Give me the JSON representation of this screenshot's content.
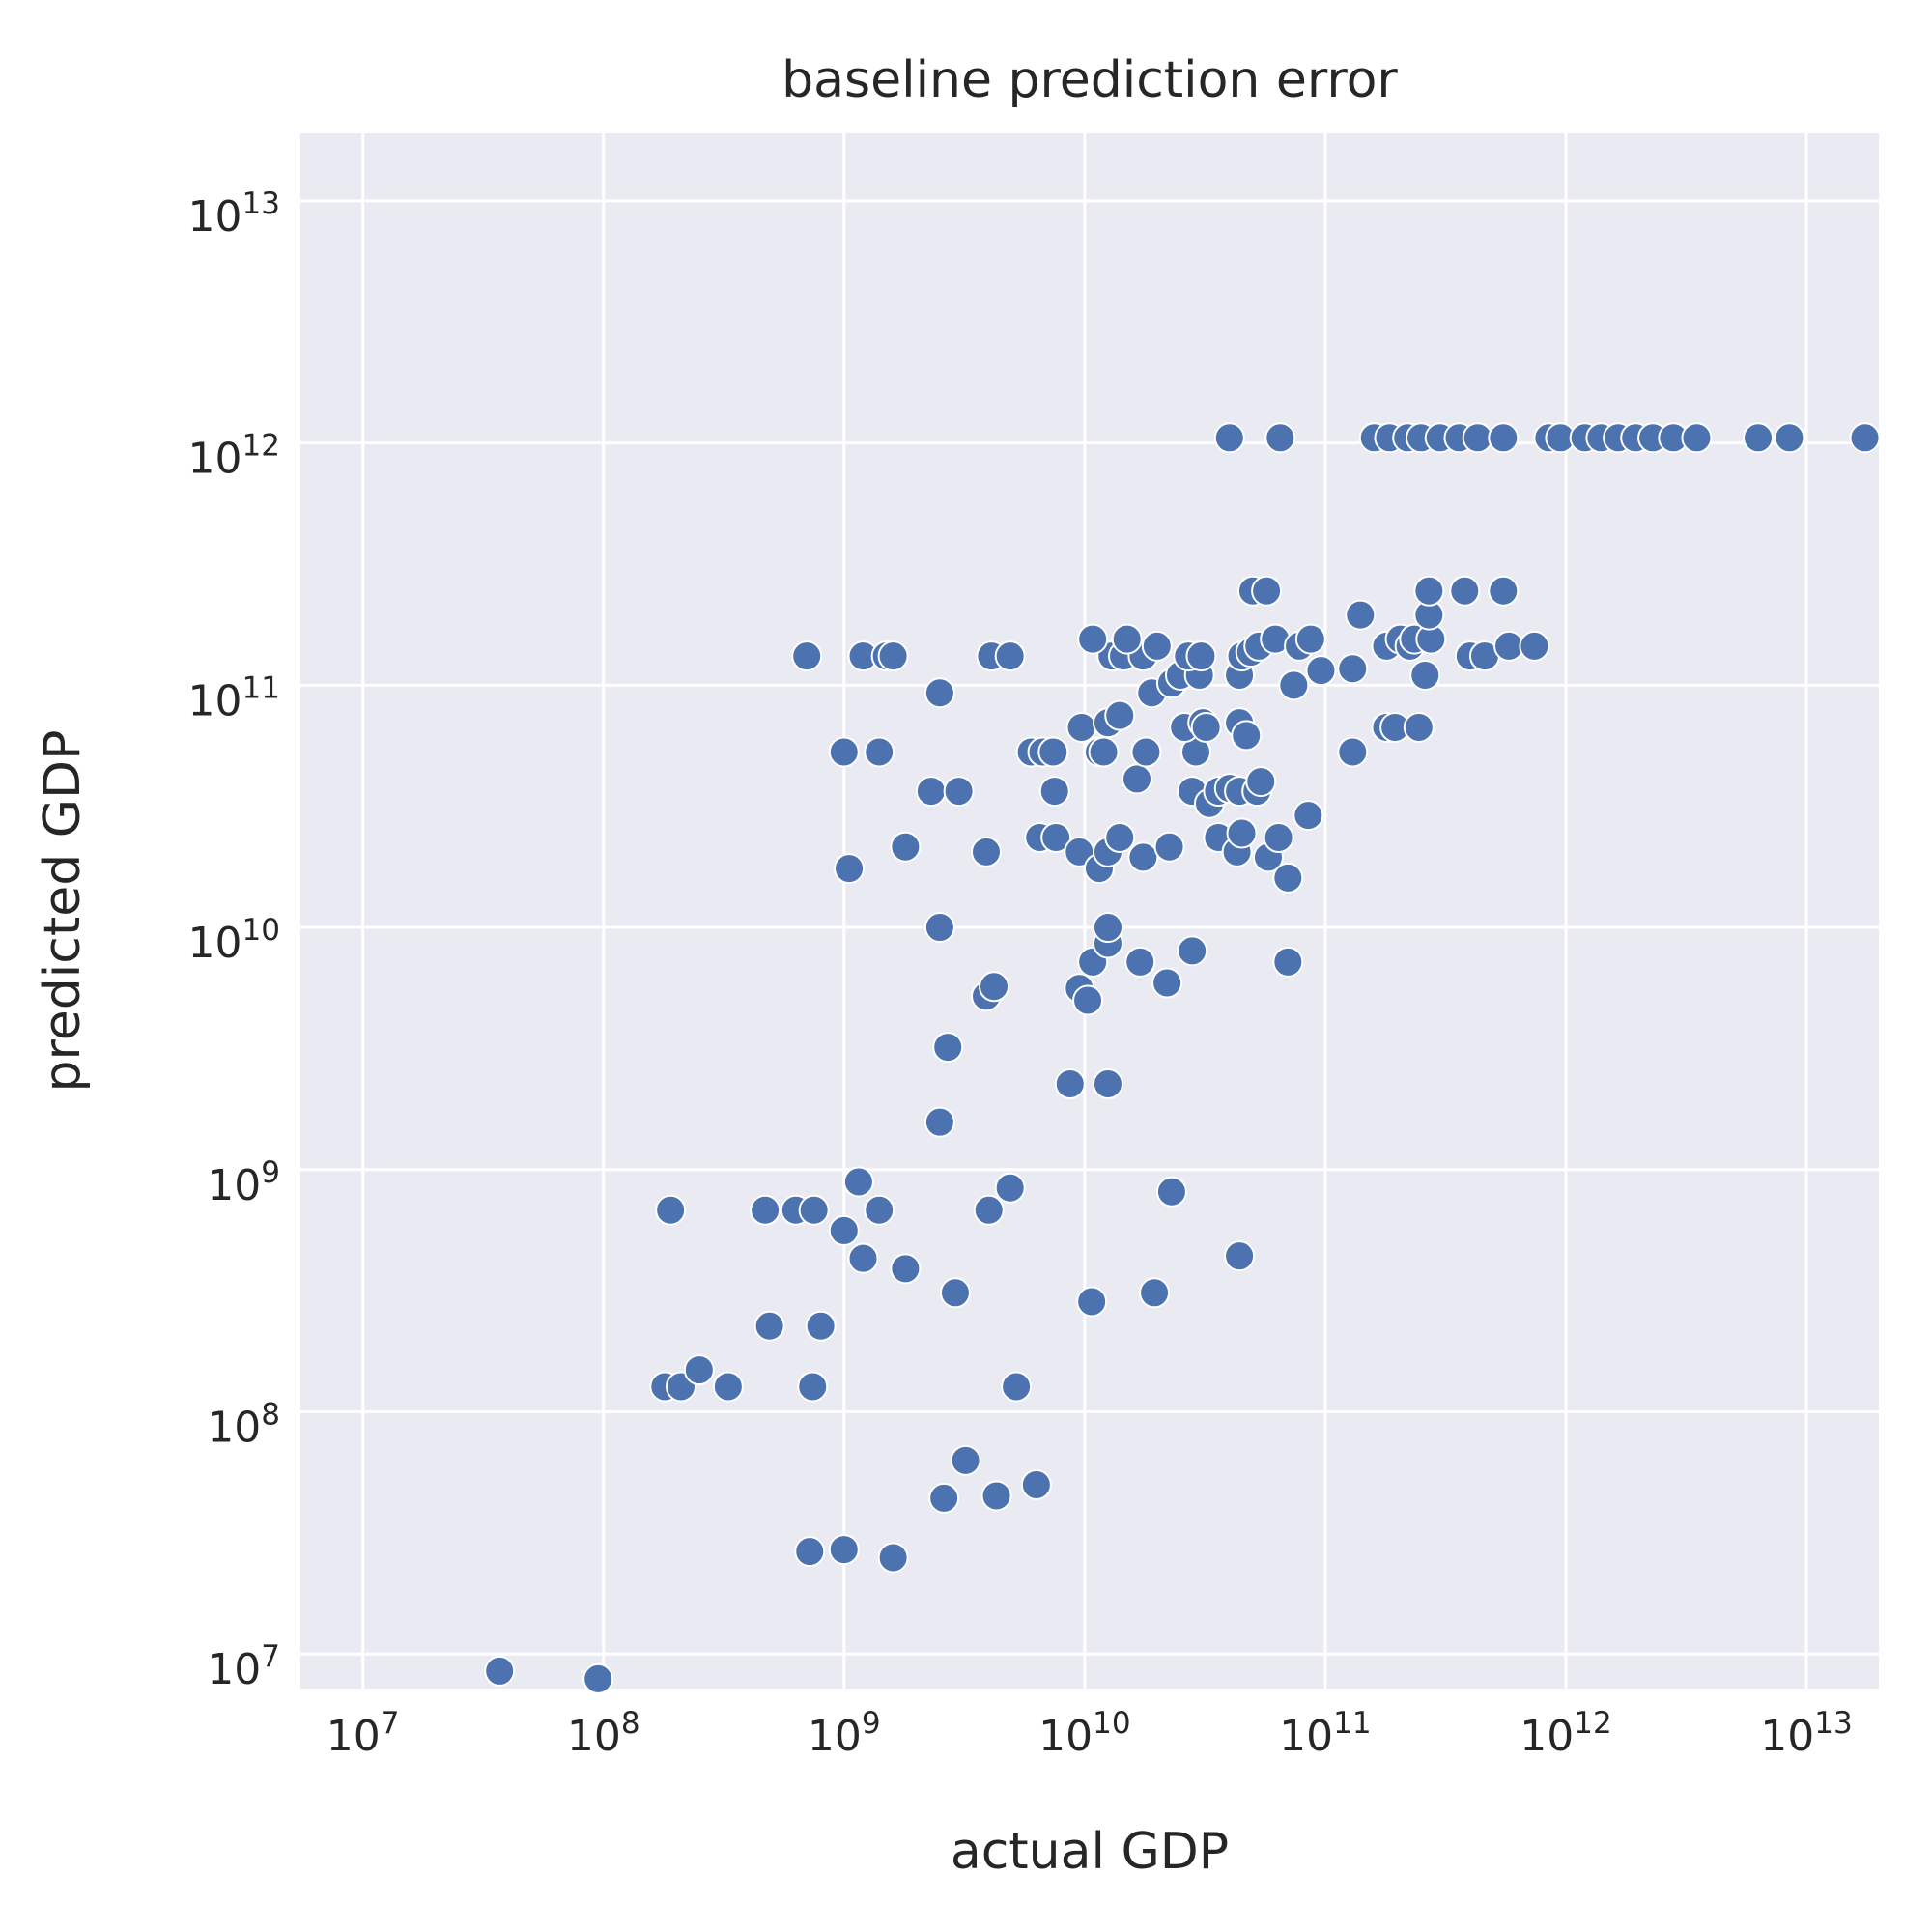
{
  "chart_data": {
    "type": "scatter",
    "title": "baseline prediction error",
    "xlabel": "actual GDP",
    "ylabel": "predicted GDP",
    "xscale": "log",
    "yscale": "log",
    "xlim": [
      5500000.0,
      20000000000000.0
    ],
    "ylim": [
      7200000.0,
      19000000000000.0
    ],
    "grid": true,
    "background": "#eaeaf2",
    "point_color": "#4c72b0",
    "xticks": [
      {
        "base": "10",
        "exp": "7",
        "value": 10000000.0
      },
      {
        "base": "10",
        "exp": "8",
        "value": 100000000.0
      },
      {
        "base": "10",
        "exp": "9",
        "value": 1000000000.0
      },
      {
        "base": "10",
        "exp": "10",
        "value": 10000000000.0
      },
      {
        "base": "10",
        "exp": "11",
        "value": 100000000000.0
      },
      {
        "base": "10",
        "exp": "12",
        "value": 1000000000000.0
      },
      {
        "base": "10",
        "exp": "13",
        "value": 10000000000000.0
      }
    ],
    "yticks": [
      {
        "base": "10",
        "exp": "7",
        "value": 10000000.0
      },
      {
        "base": "10",
        "exp": "8",
        "value": 100000000.0
      },
      {
        "base": "10",
        "exp": "9",
        "value": 1000000000.0
      },
      {
        "base": "10",
        "exp": "10",
        "value": 10000000000.0
      },
      {
        "base": "10",
        "exp": "11",
        "value": 100000000000.0
      },
      {
        "base": "10",
        "exp": "12",
        "value": 1000000000000.0
      },
      {
        "base": "10",
        "exp": "13",
        "value": 10000000000000.0
      }
    ],
    "points": [
      {
        "x": 37000000.0,
        "y": 8500000.0
      },
      {
        "x": 95000000.0,
        "y": 7900000.0
      },
      {
        "x": 180000000.0,
        "y": 127000000.0
      },
      {
        "x": 210000000.0,
        "y": 127000000.0
      },
      {
        "x": 250000000.0,
        "y": 149000000.0
      },
      {
        "x": 330000000.0,
        "y": 127000000.0
      },
      {
        "x": 190000000.0,
        "y": 680000000.0
      },
      {
        "x": 470000000.0,
        "y": 680000000.0
      },
      {
        "x": 630000000.0,
        "y": 680000000.0
      },
      {
        "x": 750000000.0,
        "y": 680000000.0
      },
      {
        "x": 490000000.0,
        "y": 226000000.0
      },
      {
        "x": 800000000.0,
        "y": 226000000.0
      },
      {
        "x": 740000000.0,
        "y": 127000000.0
      },
      {
        "x": 720000000.0,
        "y": 26500000.0
      },
      {
        "x": 1000000000.0,
        "y": 27000000.0
      },
      {
        "x": 1600000000.0,
        "y": 25000000.0
      },
      {
        "x": 2600000000.0,
        "y": 44000000.0
      },
      {
        "x": 3200000000.0,
        "y": 63000000.0
      },
      {
        "x": 4300000000.0,
        "y": 45000000.0
      },
      {
        "x": 6300000000.0,
        "y": 50000000.0
      },
      {
        "x": 5200000000.0,
        "y": 127000000.0
      },
      {
        "x": 1000000000.0,
        "y": 560000000.0
      },
      {
        "x": 1150000000.0,
        "y": 890000000.0
      },
      {
        "x": 1200000000.0,
        "y": 430000000.0
      },
      {
        "x": 1400000000.0,
        "y": 680000000.0
      },
      {
        "x": 1800000000.0,
        "y": 390000000.0
      },
      {
        "x": 2900000000.0,
        "y": 310000000.0
      },
      {
        "x": 4000000000.0,
        "y": 680000000.0
      },
      {
        "x": 4900000000.0,
        "y": 840000000.0
      },
      {
        "x": 10700000000.0,
        "y": 285000000.0
      },
      {
        "x": 19500000000.0,
        "y": 310000000.0
      },
      {
        "x": 23000000000.0,
        "y": 810000000.0
      },
      {
        "x": 44000000000.0,
        "y": 440000000.0
      },
      {
        "x": 2500000000.0,
        "y": 1570000000.0
      },
      {
        "x": 2700000000.0,
        "y": 3200000000.0
      },
      {
        "x": 3900000000.0,
        "y": 5200000000.0
      },
      {
        "x": 4200000000.0,
        "y": 5700000000.0
      },
      {
        "x": 2500000000.0,
        "y": 10000000000.0
      },
      {
        "x": 8700000000.0,
        "y": 2260000000.0
      },
      {
        "x": 12500000000.0,
        "y": 2260000000.0
      },
      {
        "x": 9500000000.0,
        "y": 5600000000.0
      },
      {
        "x": 10300000000.0,
        "y": 5000000000.0
      },
      {
        "x": 10800000000.0,
        "y": 7200000000.0
      },
      {
        "x": 12500000000.0,
        "y": 8600000000.0
      },
      {
        "x": 12500000000.0,
        "y": 10000000000.0
      },
      {
        "x": 17000000000.0,
        "y": 7200000000.0
      },
      {
        "x": 22000000000.0,
        "y": 5900000000.0
      },
      {
        "x": 28000000000.0,
        "y": 8000000000.0
      },
      {
        "x": 70000000000.0,
        "y": 7200000000.0
      },
      {
        "x": 1050000000.0,
        "y": 17500000000.0
      },
      {
        "x": 1800000000.0,
        "y": 21500000000.0
      },
      {
        "x": 3900000000.0,
        "y": 20500000000.0
      },
      {
        "x": 6500000000.0,
        "y": 23500000000.0
      },
      {
        "x": 7600000000.0,
        "y": 23500000000.0
      },
      {
        "x": 9500000000.0,
        "y": 20500000000.0
      },
      {
        "x": 11500000000.0,
        "y": 17500000000.0
      },
      {
        "x": 12500000000.0,
        "y": 20500000000.0
      },
      {
        "x": 14000000000.0,
        "y": 23500000000.0
      },
      {
        "x": 17500000000.0,
        "y": 19500000000.0
      },
      {
        "x": 22500000000.0,
        "y": 21500000000.0
      },
      {
        "x": 36000000000.0,
        "y": 23500000000.0
      },
      {
        "x": 43000000000.0,
        "y": 20500000000.0
      },
      {
        "x": 45000000000.0,
        "y": 24500000000.0
      },
      {
        "x": 58000000000.0,
        "y": 19500000000.0
      },
      {
        "x": 64000000000.0,
        "y": 23500000000.0
      },
      {
        "x": 70000000000.0,
        "y": 16000000000.0
      },
      {
        "x": 85000000000.0,
        "y": 29000000000.0
      },
      {
        "x": 2300000000.0,
        "y": 36500000000.0
      },
      {
        "x": 3000000000.0,
        "y": 36500000000.0
      },
      {
        "x": 7500000000.0,
        "y": 36500000000.0
      },
      {
        "x": 16500000000.0,
        "y": 41000000000.0
      },
      {
        "x": 28000000000.0,
        "y": 36500000000.0
      },
      {
        "x": 33000000000.0,
        "y": 32500000000.0
      },
      {
        "x": 36000000000.0,
        "y": 36500000000.0
      },
      {
        "x": 40000000000.0,
        "y": 37500000000.0
      },
      {
        "x": 44000000000.0,
        "y": 36500000000.0
      },
      {
        "x": 52000000000.0,
        "y": 36500000000.0
      },
      {
        "x": 54000000000.0,
        "y": 40000000000.0
      },
      {
        "x": 1000000000.0,
        "y": 53000000000.0
      },
      {
        "x": 1400000000.0,
        "y": 53000000000.0
      },
      {
        "x": 6000000000.0,
        "y": 53000000000.0
      },
      {
        "x": 6700000000.0,
        "y": 53000000000.0
      },
      {
        "x": 7400000000.0,
        "y": 53000000000.0
      },
      {
        "x": 11500000000.0,
        "y": 53000000000.0
      },
      {
        "x": 12000000000.0,
        "y": 53000000000.0
      },
      {
        "x": 18000000000.0,
        "y": 53000000000.0
      },
      {
        "x": 29000000000.0,
        "y": 53000000000.0
      },
      {
        "x": 130000000000.0,
        "y": 53000000000.0
      },
      {
        "x": 9700000000.0,
        "y": 67000000000.0
      },
      {
        "x": 12500000000.0,
        "y": 70000000000.0
      },
      {
        "x": 14000000000.0,
        "y": 75000000000.0
      },
      {
        "x": 26000000000.0,
        "y": 67000000000.0
      },
      {
        "x": 31000000000.0,
        "y": 70000000000.0
      },
      {
        "x": 32000000000.0,
        "y": 67000000000.0
      },
      {
        "x": 44000000000.0,
        "y": 70000000000.0
      },
      {
        "x": 47000000000.0,
        "y": 62000000000.0
      },
      {
        "x": 180000000000.0,
        "y": 67000000000.0
      },
      {
        "x": 195000000000.0,
        "y": 67000000000.0
      },
      {
        "x": 245000000000.0,
        "y": 67000000000.0
      },
      {
        "x": 2500000000.0,
        "y": 93000000000.0
      },
      {
        "x": 19000000000.0,
        "y": 93000000000.0
      },
      {
        "x": 23000000000.0,
        "y": 102000000000.0
      },
      {
        "x": 25000000000.0,
        "y": 110000000000.0
      },
      {
        "x": 30000000000.0,
        "y": 110000000000.0
      },
      {
        "x": 44000000000.0,
        "y": 110000000000.0
      },
      {
        "x": 74000000000.0,
        "y": 100000000000.0
      },
      {
        "x": 96000000000.0,
        "y": 115000000000.0
      },
      {
        "x": 130000000000.0,
        "y": 117000000000.0
      },
      {
        "x": 260000000000.0,
        "y": 110000000000.0
      },
      {
        "x": 700000000.0,
        "y": 132000000000.0
      },
      {
        "x": 1200000000.0,
        "y": 132000000000.0
      },
      {
        "x": 1500000000.0,
        "y": 132000000000.0
      },
      {
        "x": 1600000000.0,
        "y": 132000000000.0
      },
      {
        "x": 4100000000.0,
        "y": 132000000000.0
      },
      {
        "x": 4900000000.0,
        "y": 132000000000.0
      },
      {
        "x": 13000000000.0,
        "y": 132000000000.0
      },
      {
        "x": 14500000000.0,
        "y": 132000000000.0
      },
      {
        "x": 17500000000.0,
        "y": 132000000000.0
      },
      {
        "x": 27000000000.0,
        "y": 132000000000.0
      },
      {
        "x": 30500000000.0,
        "y": 132000000000.0
      },
      {
        "x": 45000000000.0,
        "y": 132000000000.0
      },
      {
        "x": 49000000000.0,
        "y": 137000000000.0
      },
      {
        "x": 400000000000.0,
        "y": 132000000000.0
      },
      {
        "x": 460000000000.0,
        "y": 132000000000.0
      },
      {
        "x": 10800000000.0,
        "y": 155000000000.0
      },
      {
        "x": 15000000000.0,
        "y": 155000000000.0
      },
      {
        "x": 20000000000.0,
        "y": 145000000000.0
      },
      {
        "x": 53000000000.0,
        "y": 145000000000.0
      },
      {
        "x": 62000000000.0,
        "y": 155000000000.0
      },
      {
        "x": 78000000000.0,
        "y": 145000000000.0
      },
      {
        "x": 87000000000.0,
        "y": 155000000000.0
      },
      {
        "x": 180000000000.0,
        "y": 145000000000.0
      },
      {
        "x": 205000000000.0,
        "y": 155000000000.0
      },
      {
        "x": 225000000000.0,
        "y": 145000000000.0
      },
      {
        "x": 235000000000.0,
        "y": 155000000000.0
      },
      {
        "x": 275000000000.0,
        "y": 155000000000.0
      },
      {
        "x": 580000000000.0,
        "y": 145000000000.0
      },
      {
        "x": 740000000000.0,
        "y": 145000000000.0
      },
      {
        "x": 140000000000.0,
        "y": 195000000000.0
      },
      {
        "x": 270000000000.0,
        "y": 195000000000.0
      },
      {
        "x": 50000000000.0,
        "y": 245000000000.0
      },
      {
        "x": 57000000000.0,
        "y": 245000000000.0
      },
      {
        "x": 270000000000.0,
        "y": 245000000000.0
      },
      {
        "x": 380000000000.0,
        "y": 245000000000.0
      },
      {
        "x": 550000000000.0,
        "y": 245000000000.0
      },
      {
        "x": 40000000000.0,
        "y": 1050000000000.0
      },
      {
        "x": 65000000000.0,
        "y": 1050000000000.0
      },
      {
        "x": 160000000000.0,
        "y": 1050000000000.0
      },
      {
        "x": 185000000000.0,
        "y": 1050000000000.0
      },
      {
        "x": 220000000000.0,
        "y": 1050000000000.0
      },
      {
        "x": 250000000000.0,
        "y": 1050000000000.0
      },
      {
        "x": 300000000000.0,
        "y": 1050000000000.0
      },
      {
        "x": 360000000000.0,
        "y": 1050000000000.0
      },
      {
        "x": 430000000000.0,
        "y": 1050000000000.0
      },
      {
        "x": 550000000000.0,
        "y": 1050000000000.0
      },
      {
        "x": 850000000000.0,
        "y": 1050000000000.0
      },
      {
        "x": 950000000000.0,
        "y": 1050000000000.0
      },
      {
        "x": 1200000000000.0,
        "y": 1050000000000.0
      },
      {
        "x": 1400000000000.0,
        "y": 1050000000000.0
      },
      {
        "x": 1650000000000.0,
        "y": 1050000000000.0
      },
      {
        "x": 1950000000000.0,
        "y": 1050000000000.0
      },
      {
        "x": 2300000000000.0,
        "y": 1050000000000.0
      },
      {
        "x": 2800000000000.0,
        "y": 1050000000000.0
      },
      {
        "x": 3500000000000.0,
        "y": 1050000000000.0
      },
      {
        "x": 6300000000000.0,
        "y": 1050000000000.0
      },
      {
        "x": 8500000000000.0,
        "y": 1050000000000.0
      },
      {
        "x": 17500000000000.0,
        "y": 1050000000000.0
      }
    ]
  }
}
